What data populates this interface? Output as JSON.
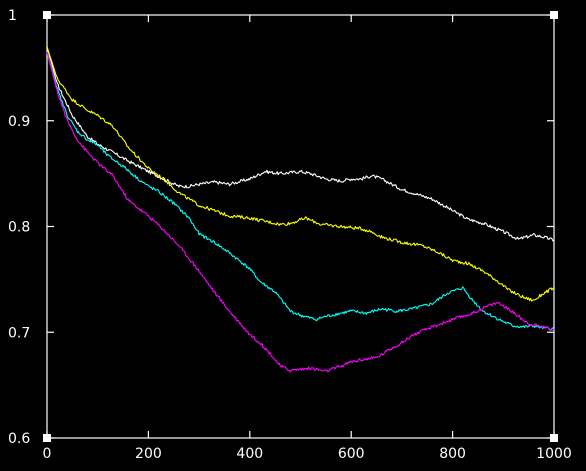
{
  "chart_data": {
    "type": "line",
    "title": "",
    "xlabel": "",
    "ylabel": "",
    "xlim": [
      0,
      1000
    ],
    "ylim": [
      0.6,
      1.0
    ],
    "x_ticks": [
      0,
      200,
      400,
      600,
      800,
      1000
    ],
    "y_ticks": [
      0.6,
      0.7,
      0.8,
      0.9,
      1.0
    ],
    "x_tick_labels": [
      "0",
      "200",
      "400",
      "600",
      "800",
      "1000"
    ],
    "y_tick_labels": [
      "0.6",
      "0.7",
      "0.8",
      "0.9",
      "1"
    ],
    "grid": false,
    "legend": "none",
    "background": "#000000",
    "axis_color": "#ffffff",
    "series": [
      {
        "color": "#ffffff",
        "points": [
          [
            0,
            0.97
          ],
          [
            20,
            0.935
          ],
          [
            50,
            0.905
          ],
          [
            80,
            0.885
          ],
          [
            100,
            0.878
          ],
          [
            130,
            0.87
          ],
          [
            160,
            0.862
          ],
          [
            200,
            0.852
          ],
          [
            230,
            0.845
          ],
          [
            260,
            0.838
          ],
          [
            280,
            0.838
          ],
          [
            300,
            0.84
          ],
          [
            330,
            0.842
          ],
          [
            360,
            0.84
          ],
          [
            400,
            0.845
          ],
          [
            430,
            0.852
          ],
          [
            460,
            0.85
          ],
          [
            500,
            0.852
          ],
          [
            520,
            0.85
          ],
          [
            550,
            0.845
          ],
          [
            580,
            0.843
          ],
          [
            600,
            0.845
          ],
          [
            620,
            0.845
          ],
          [
            640,
            0.848
          ],
          [
            660,
            0.845
          ],
          [
            680,
            0.84
          ],
          [
            700,
            0.835
          ],
          [
            720,
            0.832
          ],
          [
            760,
            0.826
          ],
          [
            800,
            0.815
          ],
          [
            830,
            0.807
          ],
          [
            860,
            0.803
          ],
          [
            900,
            0.795
          ],
          [
            930,
            0.788
          ],
          [
            960,
            0.792
          ],
          [
            980,
            0.79
          ],
          [
            1000,
            0.787
          ]
        ]
      },
      {
        "color": "#ffff00",
        "points": [
          [
            0,
            0.97
          ],
          [
            20,
            0.94
          ],
          [
            50,
            0.92
          ],
          [
            80,
            0.91
          ],
          [
            100,
            0.905
          ],
          [
            130,
            0.895
          ],
          [
            160,
            0.875
          ],
          [
            200,
            0.855
          ],
          [
            230,
            0.845
          ],
          [
            260,
            0.832
          ],
          [
            300,
            0.82
          ],
          [
            330,
            0.815
          ],
          [
            360,
            0.81
          ],
          [
            400,
            0.808
          ],
          [
            430,
            0.805
          ],
          [
            460,
            0.802
          ],
          [
            480,
            0.803
          ],
          [
            510,
            0.808
          ],
          [
            540,
            0.802
          ],
          [
            580,
            0.8
          ],
          [
            620,
            0.798
          ],
          [
            640,
            0.795
          ],
          [
            660,
            0.79
          ],
          [
            700,
            0.785
          ],
          [
            740,
            0.782
          ],
          [
            770,
            0.776
          ],
          [
            800,
            0.768
          ],
          [
            830,
            0.765
          ],
          [
            860,
            0.758
          ],
          [
            890,
            0.748
          ],
          [
            910,
            0.74
          ],
          [
            940,
            0.733
          ],
          [
            960,
            0.73
          ],
          [
            980,
            0.737
          ],
          [
            1000,
            0.742
          ]
        ]
      },
      {
        "color": "#00ffff",
        "points": [
          [
            0,
            0.965
          ],
          [
            20,
            0.93
          ],
          [
            40,
            0.905
          ],
          [
            60,
            0.89
          ],
          [
            80,
            0.882
          ],
          [
            100,
            0.877
          ],
          [
            120,
            0.867
          ],
          [
            150,
            0.857
          ],
          [
            180,
            0.845
          ],
          [
            200,
            0.838
          ],
          [
            220,
            0.833
          ],
          [
            250,
            0.822
          ],
          [
            280,
            0.808
          ],
          [
            300,
            0.793
          ],
          [
            330,
            0.785
          ],
          [
            360,
            0.775
          ],
          [
            400,
            0.76
          ],
          [
            420,
            0.748
          ],
          [
            450,
            0.738
          ],
          [
            480,
            0.72
          ],
          [
            500,
            0.716
          ],
          [
            530,
            0.712
          ],
          [
            550,
            0.715
          ],
          [
            580,
            0.718
          ],
          [
            600,
            0.72
          ],
          [
            630,
            0.718
          ],
          [
            660,
            0.722
          ],
          [
            690,
            0.72
          ],
          [
            720,
            0.722
          ],
          [
            760,
            0.727
          ],
          [
            790,
            0.737
          ],
          [
            820,
            0.742
          ],
          [
            840,
            0.73
          ],
          [
            860,
            0.72
          ],
          [
            880,
            0.715
          ],
          [
            900,
            0.71
          ],
          [
            920,
            0.706
          ],
          [
            940,
            0.705
          ],
          [
            960,
            0.706
          ],
          [
            980,
            0.704
          ],
          [
            1000,
            0.703
          ]
        ]
      },
      {
        "color": "#ff00ff",
        "points": [
          [
            0,
            0.965
          ],
          [
            20,
            0.928
          ],
          [
            40,
            0.9
          ],
          [
            60,
            0.882
          ],
          [
            80,
            0.87
          ],
          [
            100,
            0.86
          ],
          [
            130,
            0.848
          ],
          [
            160,
            0.825
          ],
          [
            200,
            0.81
          ],
          [
            230,
            0.797
          ],
          [
            260,
            0.782
          ],
          [
            300,
            0.758
          ],
          [
            330,
            0.738
          ],
          [
            360,
            0.72
          ],
          [
            400,
            0.698
          ],
          [
            420,
            0.69
          ],
          [
            440,
            0.68
          ],
          [
            460,
            0.668
          ],
          [
            480,
            0.664
          ],
          [
            500,
            0.665
          ],
          [
            520,
            0.666
          ],
          [
            550,
            0.663
          ],
          [
            580,
            0.668
          ],
          [
            600,
            0.672
          ],
          [
            620,
            0.674
          ],
          [
            650,
            0.676
          ],
          [
            680,
            0.685
          ],
          [
            700,
            0.69
          ],
          [
            720,
            0.697
          ],
          [
            760,
            0.705
          ],
          [
            800,
            0.712
          ],
          [
            840,
            0.718
          ],
          [
            870,
            0.725
          ],
          [
            890,
            0.728
          ],
          [
            910,
            0.722
          ],
          [
            930,
            0.715
          ],
          [
            950,
            0.708
          ],
          [
            970,
            0.706
          ],
          [
            990,
            0.704
          ],
          [
            1000,
            0.703
          ]
        ]
      }
    ]
  }
}
